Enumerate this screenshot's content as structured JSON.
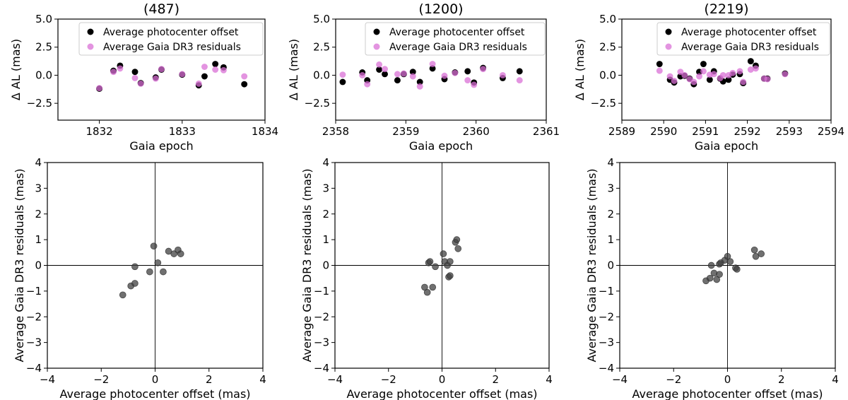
{
  "chart_data": [
    {
      "type": "scatter",
      "panel": "top-left",
      "title": "(487)",
      "xlabel": "Gaia epoch",
      "ylabel": "Δ AL (mas)",
      "xlim": [
        1831.5,
        1834
      ],
      "ylim": [
        -4,
        5
      ],
      "xticks": [
        "1832",
        "1833",
        "1834"
      ],
      "yticks": [
        "−2.5",
        "0.0",
        "2.5",
        "5.0"
      ],
      "xtick_values": [
        1832,
        1833,
        1834
      ],
      "ytick_values": [
        -2.5,
        0,
        2.5,
        5
      ],
      "legend": {
        "position": "top-right",
        "entries": [
          "Average photocenter offset",
          "Average Gaia DR3 residuals"
        ]
      },
      "series": [
        {
          "name": "Average photocenter offset",
          "color": "#000000",
          "x": [
            1832.0,
            1832.17,
            1832.25,
            1832.43,
            1832.5,
            1832.68,
            1832.75,
            1833.0,
            1833.2,
            1833.27,
            1833.4,
            1833.5,
            1833.75
          ],
          "y": [
            -1.2,
            0.4,
            0.85,
            0.3,
            -0.7,
            -0.2,
            0.5,
            0.05,
            -0.9,
            -0.1,
            1.0,
            0.7,
            -0.8
          ]
        },
        {
          "name": "Average Gaia DR3 residuals",
          "color": "#da70d6",
          "x": [
            1832.0,
            1832.17,
            1832.25,
            1832.43,
            1832.5,
            1832.68,
            1832.75,
            1833.0,
            1833.2,
            1833.27,
            1833.4,
            1833.5,
            1833.75
          ],
          "y": [
            -1.15,
            0.3,
            0.6,
            -0.25,
            -0.75,
            -0.3,
            0.55,
            0.1,
            -0.75,
            0.75,
            0.5,
            0.45,
            -0.1
          ]
        }
      ]
    },
    {
      "type": "scatter",
      "panel": "top-middle",
      "title": "(1200)",
      "xlabel": "Gaia epoch",
      "ylabel": "Δ AL (mas)",
      "xlim": [
        2358,
        2361
      ],
      "ylim": [
        -4,
        5
      ],
      "xticks": [
        "2358",
        "2359",
        "2360",
        "2361"
      ],
      "yticks": [
        "−2.5",
        "0.0",
        "2.5",
        "5.0"
      ],
      "xtick_values": [
        2358,
        2359,
        2360,
        2361
      ],
      "ytick_values": [
        -2.5,
        0,
        2.5,
        5
      ],
      "legend": {
        "position": "top-right",
        "entries": [
          "Average photocenter offset",
          "Average Gaia DR3 residuals"
        ]
      },
      "series": [
        {
          "name": "Average photocenter offset",
          "color": "#000000",
          "x": [
            2358.1,
            2358.38,
            2358.45,
            2358.62,
            2358.7,
            2358.88,
            2358.97,
            2359.1,
            2359.2,
            2359.38,
            2359.55,
            2359.7,
            2359.88,
            2359.97,
            2360.1,
            2360.38,
            2360.62
          ],
          "y": [
            -0.6,
            0.25,
            -0.45,
            0.5,
            0.1,
            -0.45,
            0.1,
            0.3,
            -0.6,
            0.6,
            -0.35,
            0.25,
            0.35,
            -0.65,
            0.65,
            -0.25,
            0.35
          ]
        },
        {
          "name": "Average Gaia DR3 residuals",
          "color": "#da70d6",
          "x": [
            2358.1,
            2358.38,
            2358.45,
            2358.62,
            2358.7,
            2358.88,
            2358.97,
            2359.1,
            2359.2,
            2359.38,
            2359.55,
            2359.7,
            2359.88,
            2359.97,
            2360.1,
            2360.38,
            2360.62
          ],
          "y": [
            0.05,
            0.0,
            -0.8,
            0.95,
            0.55,
            0.1,
            0.15,
            -0.1,
            -1.0,
            1.0,
            -0.05,
            0.2,
            -0.45,
            -0.85,
            0.55,
            0.0,
            -0.45
          ]
        }
      ]
    },
    {
      "type": "scatter",
      "panel": "top-right",
      "title": "(2219)",
      "xlabel": "Gaia epoch",
      "ylabel": "Δ AL (mas)",
      "xlim": [
        2589,
        2594
      ],
      "ylim": [
        -4,
        5
      ],
      "xticks": [
        "2589",
        "2590",
        "2591",
        "2592",
        "2593",
        "2594"
      ],
      "yticks": [
        "−2.5",
        "0.0",
        "2.5",
        "5.0"
      ],
      "xtick_values": [
        2589,
        2590,
        2591,
        2592,
        2593,
        2594
      ],
      "ytick_values": [
        -2.5,
        0,
        2.5,
        5
      ],
      "legend": {
        "position": "top-right",
        "entries": [
          "Average photocenter offset",
          "Average Gaia DR3 residuals"
        ]
      },
      "series": [
        {
          "name": "Average photocenter offset",
          "color": "#000000",
          "x": [
            2589.9,
            2590.15,
            2590.25,
            2590.4,
            2590.5,
            2590.62,
            2590.72,
            2590.85,
            2590.95,
            2591.1,
            2591.2,
            2591.35,
            2591.42,
            2591.55,
            2591.65,
            2591.82,
            2591.9,
            2592.08,
            2592.2,
            2592.4,
            2592.48,
            2592.9
          ],
          "y": [
            1.0,
            -0.4,
            -0.65,
            -0.1,
            -0.05,
            -0.3,
            -0.8,
            0.3,
            1.0,
            -0.4,
            0.35,
            -0.3,
            -0.55,
            -0.4,
            0.05,
            0.1,
            -0.7,
            1.25,
            0.85,
            -0.3,
            -0.3,
            0.15
          ]
        },
        {
          "name": "Average Gaia DR3 residuals",
          "color": "#da70d6",
          "x": [
            2589.9,
            2590.15,
            2590.25,
            2590.4,
            2590.5,
            2590.62,
            2590.72,
            2590.85,
            2590.95,
            2591.1,
            2591.2,
            2591.35,
            2591.42,
            2591.55,
            2591.65,
            2591.82,
            2591.9,
            2592.08,
            2592.2,
            2592.4,
            2592.48,
            2592.9
          ],
          "y": [
            0.4,
            -0.1,
            -0.5,
            0.3,
            0.0,
            -0.35,
            -0.6,
            -0.1,
            0.35,
            0.05,
            0.1,
            -0.25,
            0.0,
            0.0,
            0.2,
            0.35,
            -0.6,
            0.5,
            0.6,
            -0.3,
            -0.35,
            0.1
          ]
        }
      ]
    },
    {
      "type": "scatter",
      "panel": "bottom-left",
      "xlabel": "Average photocenter offset (mas)",
      "ylabel": "Average Gaia DR3 residuals (mas)",
      "xlim": [
        -4,
        4
      ],
      "ylim": [
        -4,
        4
      ],
      "xticks": [
        "−4",
        "−2",
        "0",
        "2",
        "4"
      ],
      "yticks": [
        "−4",
        "−3",
        "−2",
        "−1",
        "0",
        "1",
        "2",
        "3",
        "4"
      ],
      "xtick_values": [
        -4,
        -2,
        0,
        2,
        4
      ],
      "ytick_values": [
        -4,
        -3,
        -2,
        -1,
        0,
        1,
        2,
        3,
        4
      ],
      "reference_lines": {
        "x": 0,
        "y": 0
      },
      "series": [
        {
          "name": "points",
          "color": "#404040",
          "x": [
            -1.2,
            -0.9,
            -0.75,
            -0.75,
            -0.2,
            -0.05,
            0.1,
            0.3,
            0.5,
            0.7,
            0.85,
            0.95
          ],
          "y": [
            -1.15,
            -0.8,
            -0.05,
            -0.7,
            -0.25,
            0.75,
            0.1,
            -0.25,
            0.55,
            0.45,
            0.6,
            0.45
          ]
        }
      ]
    },
    {
      "type": "scatter",
      "panel": "bottom-middle",
      "xlabel": "Average photocenter offset (mas)",
      "ylabel": "Average Gaia DR3 residuals (mas)",
      "xlim": [
        -4,
        4
      ],
      "ylim": [
        -4,
        4
      ],
      "xticks": [
        "−4",
        "−2",
        "0",
        "2",
        "4"
      ],
      "yticks": [
        "−4",
        "−3",
        "−2",
        "−1",
        "0",
        "1",
        "2",
        "3",
        "4"
      ],
      "xtick_values": [
        -4,
        -2,
        0,
        2,
        4
      ],
      "ytick_values": [
        -4,
        -3,
        -2,
        -1,
        0,
        1,
        2,
        3,
        4
      ],
      "reference_lines": {
        "x": 0,
        "y": 0
      },
      "series": [
        {
          "name": "points",
          "color": "#404040",
          "x": [
            -0.65,
            -0.55,
            -0.5,
            -0.45,
            -0.35,
            -0.25,
            0.05,
            0.1,
            0.2,
            0.25,
            0.3,
            0.3,
            0.5,
            0.55,
            0.6
          ],
          "y": [
            -0.85,
            -1.05,
            0.1,
            0.15,
            -0.85,
            -0.05,
            0.45,
            0.15,
            0.0,
            -0.45,
            -0.4,
            0.15,
            0.9,
            1.0,
            0.65
          ]
        }
      ]
    },
    {
      "type": "scatter",
      "panel": "bottom-right",
      "xlabel": "Average photocenter offset (mas)",
      "ylabel": "Average Gaia DR3 residuals (mas)",
      "xlim": [
        -4,
        4
      ],
      "ylim": [
        -4,
        4
      ],
      "xticks": [
        "−4",
        "−2",
        "0",
        "2",
        "4"
      ],
      "yticks": [
        "−4",
        "−3",
        "−2",
        "−1",
        "0",
        "1",
        "2",
        "3",
        "4"
      ],
      "xtick_values": [
        -4,
        -2,
        0,
        2,
        4
      ],
      "ytick_values": [
        -4,
        -3,
        -2,
        -1,
        0,
        1,
        2,
        3,
        4
      ],
      "reference_lines": {
        "x": 0,
        "y": 0
      },
      "series": [
        {
          "name": "points",
          "color": "#404040",
          "x": [
            -0.8,
            -0.65,
            -0.6,
            -0.5,
            -0.4,
            -0.3,
            -0.3,
            -0.25,
            -0.1,
            0.0,
            0.1,
            0.3,
            0.35,
            1.0,
            1.05,
            1.25
          ],
          "y": [
            -0.6,
            -0.5,
            0.0,
            -0.3,
            -0.55,
            0.05,
            -0.35,
            0.1,
            0.2,
            0.35,
            0.15,
            -0.1,
            -0.15,
            0.6,
            0.35,
            0.45
          ]
        }
      ]
    }
  ]
}
